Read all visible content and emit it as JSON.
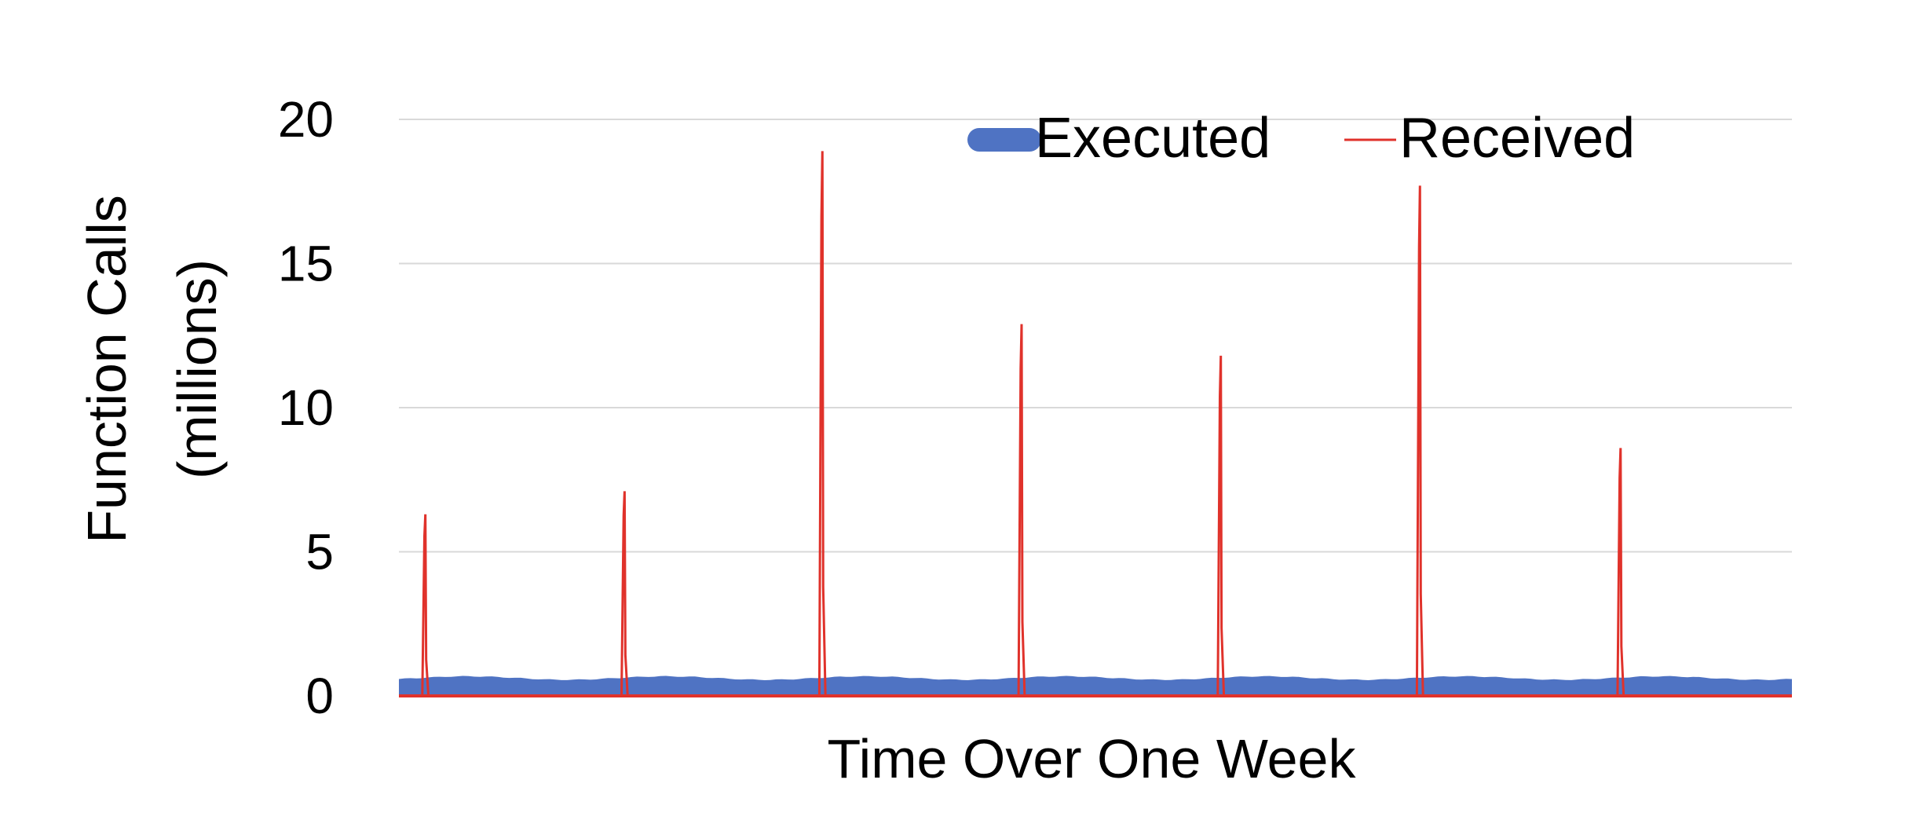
{
  "chart_data": {
    "type": "line",
    "title": "",
    "xlabel": "Time Over One Week",
    "ylabel_lines": [
      "Function Calls",
      "(millions)"
    ],
    "ylim": [
      0,
      20
    ],
    "yticks": [
      "0",
      "5",
      "10",
      "15",
      "20"
    ],
    "grid": true,
    "legend_position": "top",
    "colors": {
      "executed": "#4F73C3",
      "received": "#E0322B",
      "grid": "#D9D9D9"
    },
    "x_range": [
      0,
      1
    ],
    "series": [
      {
        "name": "Executed",
        "style": "area",
        "baseline": 0.62,
        "amplitude": 0.06,
        "cycles": 7,
        "points": 240
      },
      {
        "name": "Received",
        "style": "line",
        "spikes": [
          {
            "x": 0.019,
            "value": 6.3
          },
          {
            "x": 0.162,
            "value": 7.1
          },
          {
            "x": 0.304,
            "value": 18.9
          },
          {
            "x": 0.447,
            "value": 12.9
          },
          {
            "x": 0.59,
            "value": 11.8
          },
          {
            "x": 0.733,
            "value": 17.7
          },
          {
            "x": 0.877,
            "value": 8.6
          }
        ]
      }
    ]
  }
}
